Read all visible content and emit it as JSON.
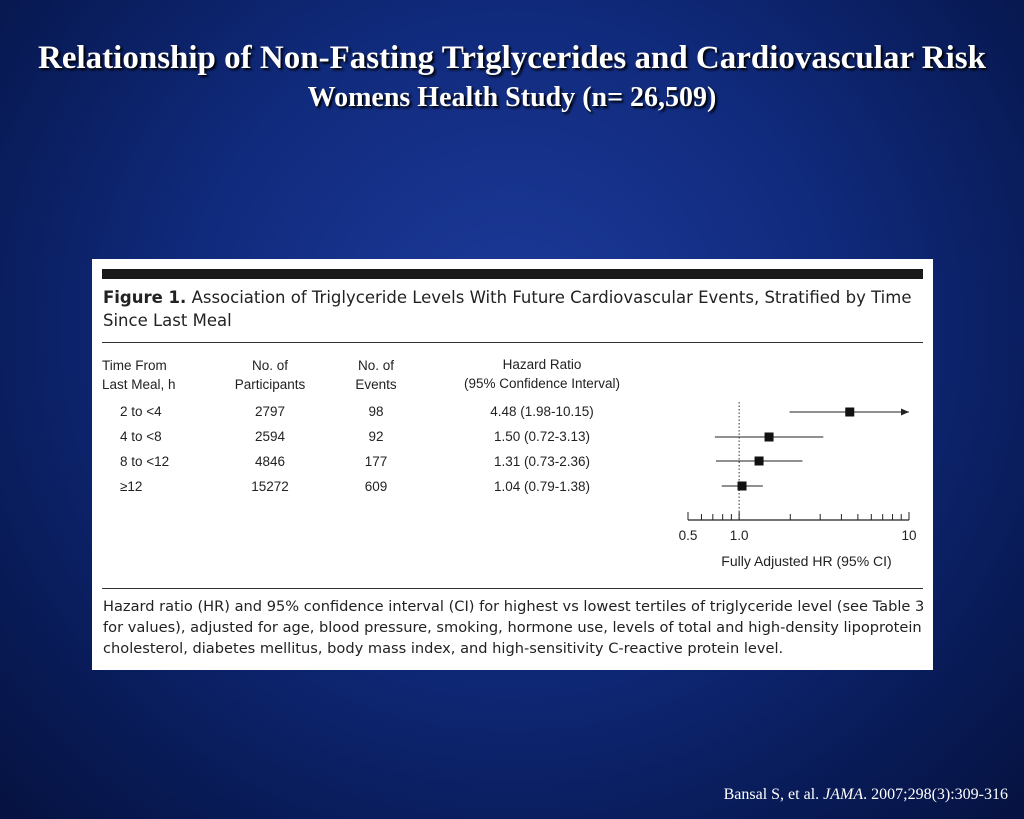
{
  "slide": {
    "title": "Relationship of Non-Fasting Triglycerides and Cardiovascular Risk",
    "subtitle": "Womens Health Study (n= 26,509)",
    "citation_author": "Bansal S, et al. ",
    "citation_journal": "JAMA",
    "citation_rest": ". 2007;298(3):309-316"
  },
  "figure": {
    "label": "Figure 1.",
    "caption": "Association of Triglyceride Levels With Future Cardiovascular Events, Stratified by Time Since Last Meal",
    "columns": {
      "time_line1": "Time From",
      "time_line2": "Last Meal, h",
      "participants_line1": "No. of",
      "participants_line2": "Participants",
      "events_line1": "No. of",
      "events_line2": "Events",
      "hr_line1": "Hazard Ratio",
      "hr_line2": "(95% Confidence Interval)"
    },
    "rows": [
      {
        "time": "2 to <4",
        "participants": "2797",
        "events": "98",
        "hr_text": "4.48 (1.98-10.15)"
      },
      {
        "time": "4 to <8",
        "participants": "2594",
        "events": "92",
        "hr_text": "1.50 (0.72-3.13)"
      },
      {
        "time": "8 to <12",
        "participants": "4846",
        "events": "177",
        "hr_text": "1.31 (0.73-2.36)"
      },
      {
        "time": "≥12",
        "participants": "15272",
        "events": "609",
        "hr_text": "1.04 (0.79-1.38)"
      }
    ],
    "footnote": "Hazard ratio (HR) and 95% confidence interval (CI) for highest vs lowest tertiles of triglyceride level (see Table 3 for values), adjusted for age, blood pressure, smoking, hormone use, levels of total and high-density lipoprotein cholesterol, diabetes mellitus, body mass index, and high-sensitivity C-reactive protein level."
  },
  "chart_data": {
    "type": "scatter",
    "xlabel": "Fully Adjusted HR (95% CI)",
    "x_scale": "log",
    "xlim": [
      0.5,
      10
    ],
    "x_tick_labels": [
      "0.5",
      "1.0",
      "10"
    ],
    "reference_line": 1.0,
    "series": [
      {
        "points": [
          {
            "category": "2 to <4",
            "hr": 4.48,
            "lower": 1.98,
            "upper": 10.15,
            "arrow_right": true
          },
          {
            "category": "4 to <8",
            "hr": 1.5,
            "lower": 0.72,
            "upper": 3.13
          },
          {
            "category": "8 to <12",
            "hr": 1.31,
            "lower": 0.73,
            "upper": 2.36
          },
          {
            "category": "≥12",
            "hr": 1.04,
            "lower": 0.79,
            "upper": 1.38
          }
        ]
      }
    ]
  }
}
